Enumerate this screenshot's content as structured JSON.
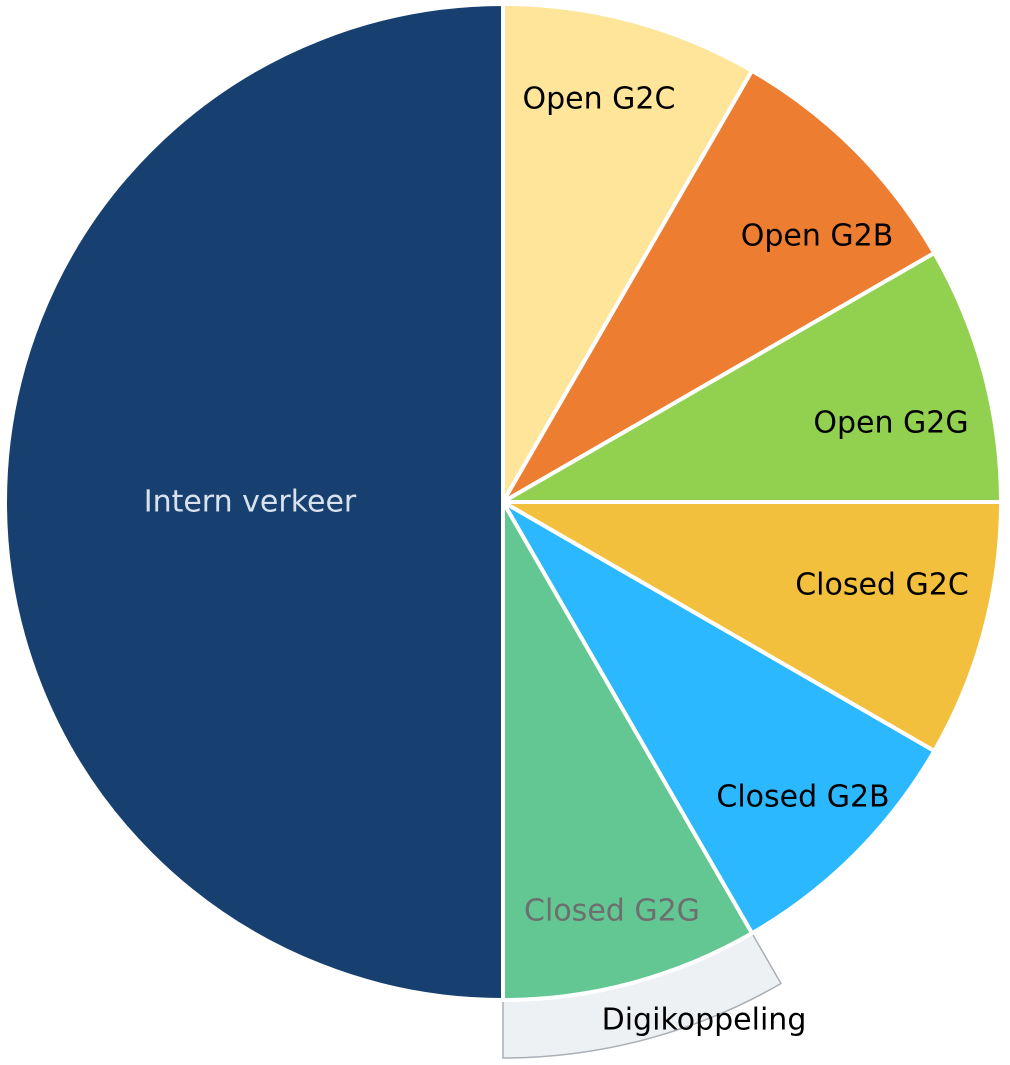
{
  "chart_data": {
    "type": "pie",
    "title": "",
    "start_angle_deg": 0,
    "direction": "clockwise",
    "slices": [
      {
        "label": "Open G2C",
        "value": 1,
        "color": "#FEE599",
        "label_color": "#000000"
      },
      {
        "label": "Open G2B",
        "value": 1,
        "color": "#ED7D31",
        "label_color": "#000000"
      },
      {
        "label": "Open G2G",
        "value": 1,
        "color": "#92D050",
        "label_color": "#000000"
      },
      {
        "label": "Closed G2C",
        "value": 1,
        "color": "#F2C03D",
        "label_color": "#000000"
      },
      {
        "label": "Closed G2B",
        "value": 1,
        "color": "#2BB8FF",
        "label_color": "#000000"
      },
      {
        "label": "Closed G2G",
        "value": 1,
        "color": "#63C794",
        "label_color": "#6E6E6E"
      },
      {
        "label": "Intern verkeer",
        "value": 6,
        "color": "#174070",
        "label_color": "#D9E2EC"
      }
    ],
    "annotation": {
      "label": "Digikoppeling",
      "spans_slices": [
        "Closed G2G"
      ],
      "fill": "#EEF1F4",
      "stroke": "#A9AFB5",
      "text_color": "#000000"
    }
  }
}
